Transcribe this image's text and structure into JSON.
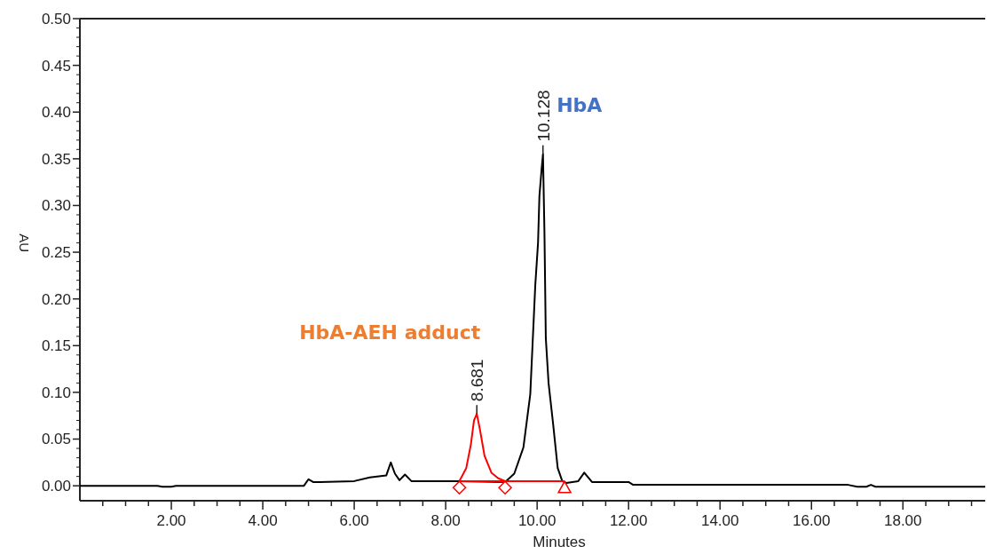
{
  "chart_data": {
    "type": "line",
    "xlabel": "Minutes",
    "ylabel": "AU",
    "xlim": [
      0,
      19.8
    ],
    "ylim": [
      -0.016,
      0.5
    ],
    "xticks": [
      {
        "value": 0.5,
        "label": null
      },
      {
        "value": 1,
        "label": null
      },
      {
        "value": 1.5,
        "label": null
      },
      {
        "value": 2,
        "label": "2.00"
      },
      {
        "value": 2.5,
        "label": null
      },
      {
        "value": 3,
        "label": null
      },
      {
        "value": 3.5,
        "label": null
      },
      {
        "value": 4,
        "label": "4.00"
      },
      {
        "value": 4.5,
        "label": null
      },
      {
        "value": 5,
        "label": null
      },
      {
        "value": 5.5,
        "label": null
      },
      {
        "value": 6,
        "label": "6.00"
      },
      {
        "value": 6.5,
        "label": null
      },
      {
        "value": 7,
        "label": null
      },
      {
        "value": 7.5,
        "label": null
      },
      {
        "value": 8,
        "label": "8.00"
      },
      {
        "value": 8.5,
        "label": null
      },
      {
        "value": 9,
        "label": null
      },
      {
        "value": 9.5,
        "label": null
      },
      {
        "value": 10,
        "label": "10.00"
      },
      {
        "value": 10.5,
        "label": null
      },
      {
        "value": 11,
        "label": null
      },
      {
        "value": 11.5,
        "label": null
      },
      {
        "value": 12,
        "label": "12.00"
      },
      {
        "value": 12.5,
        "label": null
      },
      {
        "value": 13,
        "label": null
      },
      {
        "value": 13.5,
        "label": null
      },
      {
        "value": 14,
        "label": "14.00"
      },
      {
        "value": 14.5,
        "label": null
      },
      {
        "value": 15,
        "label": null
      },
      {
        "value": 15.5,
        "label": null
      },
      {
        "value": 16,
        "label": "16.00"
      },
      {
        "value": 16.5,
        "label": null
      },
      {
        "value": 17,
        "label": null
      },
      {
        "value": 17.5,
        "label": null
      },
      {
        "value": 18,
        "label": "18.00"
      },
      {
        "value": 18.5,
        "label": null
      },
      {
        "value": 19,
        "label": null
      },
      {
        "value": 19.5,
        "label": null
      }
    ],
    "yticks": [
      {
        "value": 0,
        "label": "0.00"
      },
      {
        "value": 0.05,
        "label": "0.05"
      },
      {
        "value": 0.1,
        "label": "0.10"
      },
      {
        "value": 0.15,
        "label": "0.15"
      },
      {
        "value": 0.2,
        "label": "0.20"
      },
      {
        "value": 0.25,
        "label": "0.25"
      },
      {
        "value": 0.3,
        "label": "0.30"
      },
      {
        "value": 0.35,
        "label": "0.35"
      },
      {
        "value": 0.4,
        "label": "0.40"
      },
      {
        "value": 0.45,
        "label": "0.45"
      },
      {
        "value": 0.5,
        "label": "0.50"
      }
    ],
    "grid": false,
    "marker": "none",
    "line_style": "solid",
    "series": [
      {
        "color": "#000000",
        "x": [
          0,
          1.7,
          1.8,
          2.0,
          2.1,
          4.9,
          5.0,
          5.1,
          5.24,
          6.0,
          6.34,
          6.7,
          6.8,
          6.89,
          6.99,
          7.11,
          7.25,
          8.0,
          8.3,
          9.3,
          9.5,
          9.7,
          9.85,
          9.96,
          10.02,
          10.05,
          10.1,
          10.128,
          10.16,
          10.19,
          10.25,
          10.35,
          10.45,
          10.55,
          10.64,
          10.9,
          11.03,
          11.2,
          12.0,
          12.1,
          16.8,
          17.0,
          17.2,
          17.3,
          17.4,
          19.8
        ],
        "values": [
          0.0,
          0.0,
          -0.001,
          -0.001,
          0.0,
          0.0,
          0.007,
          0.004,
          0.004,
          0.005,
          0.009,
          0.011,
          0.025,
          0.013,
          0.006,
          0.012,
          0.005,
          0.005,
          0.005,
          0.004,
          0.013,
          0.041,
          0.098,
          0.215,
          0.26,
          0.31,
          0.34,
          0.355,
          0.272,
          0.158,
          0.11,
          0.066,
          0.019,
          0.005,
          0.003,
          0.005,
          0.014,
          0.004,
          0.004,
          0.001,
          0.001,
          -0.001,
          -0.001,
          0.001,
          -0.001,
          -0.001
        ]
      },
      {
        "color": "#ff0000",
        "x": [
          8.3,
          8.45,
          8.55,
          8.62,
          8.681,
          8.75,
          8.85,
          9.0,
          9.15,
          9.3
        ],
        "values": [
          0.005,
          0.019,
          0.044,
          0.07,
          0.077,
          0.06,
          0.032,
          0.014,
          0.008,
          0.005
        ]
      },
      {
        "color": "#ff0000",
        "x": [
          8.3,
          10.6
        ],
        "values": [
          0.005,
          0.005
        ]
      },
      {
        "type": "scatter",
        "marker": "diamond",
        "color": "#ff0000",
        "x": [
          8.3,
          9.3
        ],
        "values": [
          -0.002,
          -0.002
        ]
      },
      {
        "type": "scatter",
        "marker": "triangle",
        "color": "#ff0000",
        "x": [
          10.6
        ],
        "values": [
          -0.002
        ]
      }
    ],
    "annotations": [
      "8.681",
      "10.128",
      "HbA-AEH adduct",
      "HbA"
    ]
  }
}
